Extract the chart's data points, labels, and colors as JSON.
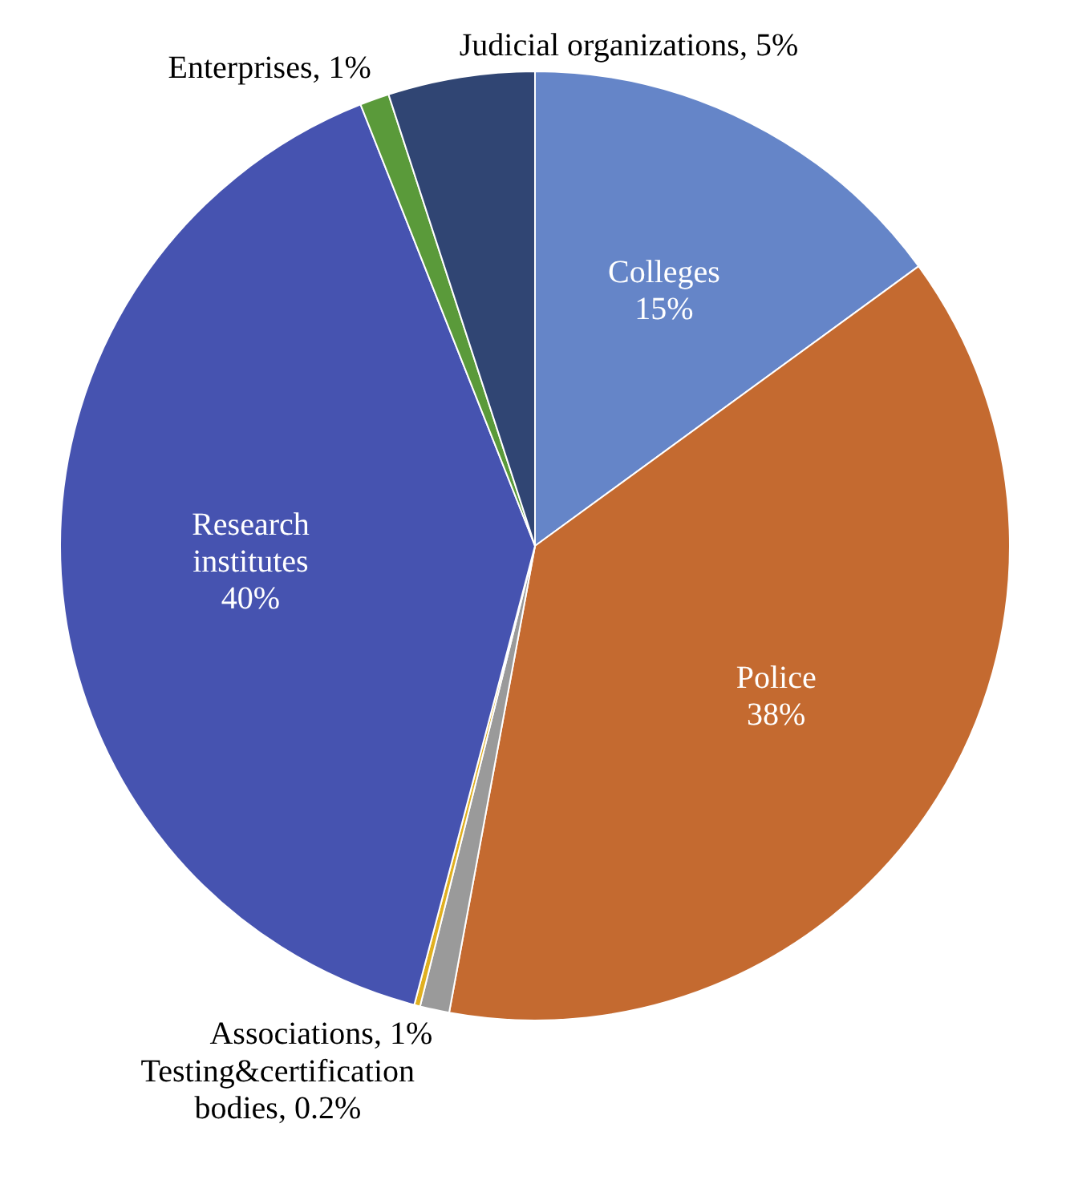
{
  "chart_data": {
    "type": "pie",
    "categories": [
      "Colleges",
      "Police",
      "Associations",
      "Testing&certification bodies",
      "Research institutes",
      "Enterprises",
      "Judicial organizations"
    ],
    "values": [
      15,
      38,
      1,
      0.2,
      40,
      1,
      5
    ],
    "value_labels": [
      "15%",
      "38%",
      "1%",
      "0.2%",
      "40%",
      "1%",
      "5%"
    ],
    "colors": [
      "#6585c8",
      "#c46a30",
      "#9a9a9a",
      "#e0b020",
      "#4653b0",
      "#5a9a3a",
      "#304573"
    ],
    "legend": false
  }
}
